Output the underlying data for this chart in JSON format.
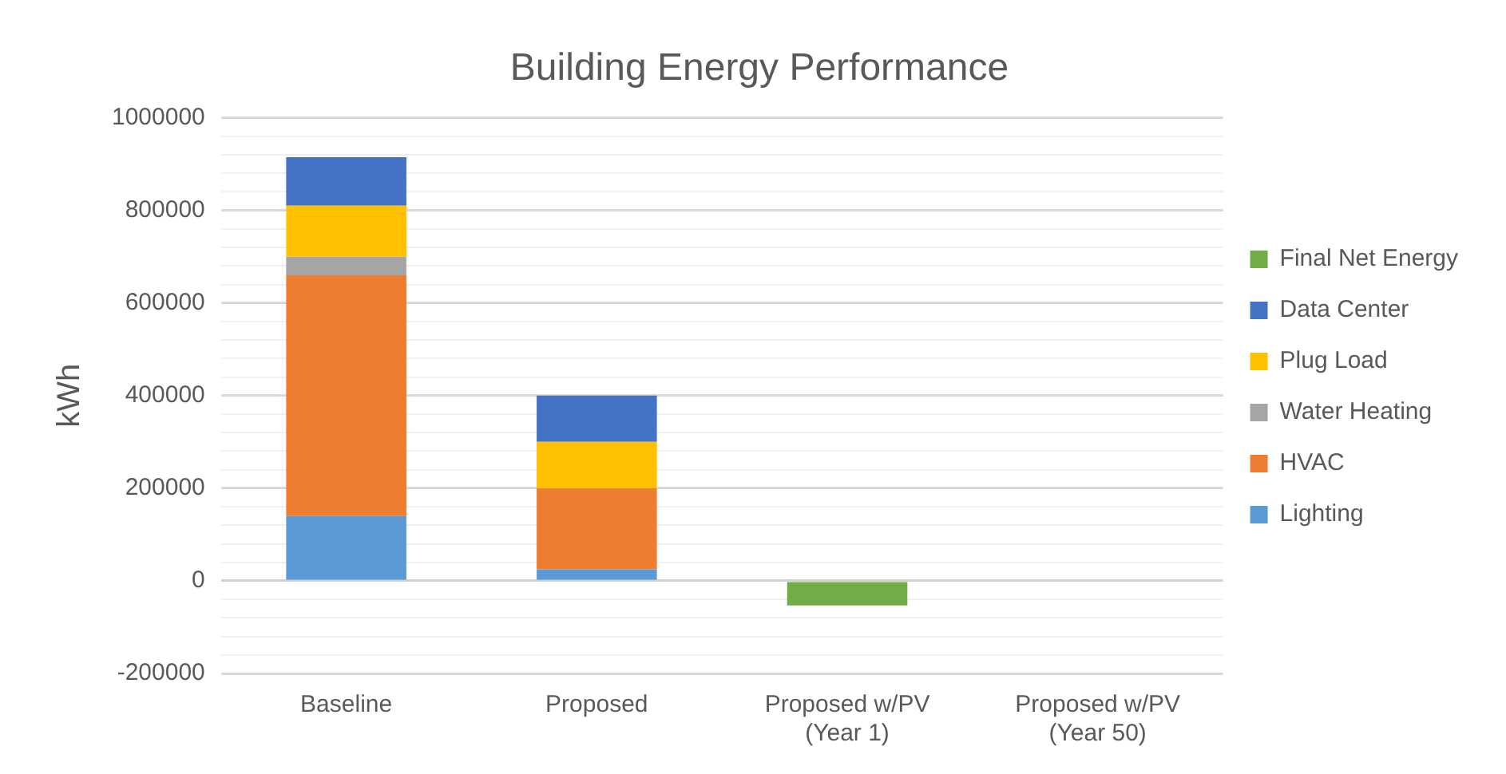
{
  "chart_data": {
    "type": "bar",
    "title": "Building Energy Performance",
    "ylabel": "kWh",
    "categories": [
      "Baseline",
      "Proposed",
      "Proposed w/PV\n(Year 1)",
      "Proposed w/PV\n(Year 50)"
    ],
    "stacked": true,
    "legend": "right",
    "grid": "y",
    "ylim": [
      -200000,
      1000000
    ],
    "yticks": [
      -200000,
      {
        "value": -160000,
        "label": null
      },
      {
        "value": -120000,
        "label": null
      },
      {
        "value": -80000,
        "label": null
      },
      {
        "value": -40000,
        "label": null
      },
      0,
      {
        "value": 40000,
        "label": null
      },
      {
        "value": 80000,
        "label": null
      },
      {
        "value": 120000,
        "label": null
      },
      {
        "value": 160000,
        "label": null
      },
      200000,
      {
        "value": 240000,
        "label": null
      },
      {
        "value": 280000,
        "label": null
      },
      {
        "value": 320000,
        "label": null
      },
      {
        "value": 360000,
        "label": null
      },
      400000,
      {
        "value": 440000,
        "label": null
      },
      {
        "value": 480000,
        "label": null
      },
      {
        "value": 520000,
        "label": null
      },
      {
        "value": 560000,
        "label": null
      },
      600000,
      {
        "value": 640000,
        "label": null
      },
      {
        "value": 680000,
        "label": null
      },
      {
        "value": 720000,
        "label": null
      },
      {
        "value": 760000,
        "label": null
      },
      800000,
      {
        "value": 840000,
        "label": null
      },
      {
        "value": 880000,
        "label": null
      },
      {
        "value": 920000,
        "label": null
      },
      {
        "value": 960000,
        "label": null
      },
      1000000
    ],
    "series": [
      {
        "name": "Lighting",
        "color": "#5b9bd5",
        "values": [
          140000,
          25000,
          null,
          null
        ]
      },
      {
        "name": "HVAC",
        "color": "#ed7d31",
        "values": [
          520000,
          175000,
          null,
          null
        ]
      },
      {
        "name": "Water Heating",
        "color": "#a5a5a5",
        "values": [
          40000,
          null,
          null,
          null
        ]
      },
      {
        "name": "Plug Load",
        "color": "#ffc000",
        "values": [
          110000,
          100000,
          null,
          null
        ]
      },
      {
        "name": "Data Center",
        "color": "#4472c4",
        "values": [
          105000,
          100000,
          null,
          null
        ]
      },
      {
        "name": "Final Net Energy",
        "color": "#70ad47",
        "values": [
          null,
          null,
          -53000,
          null
        ]
      }
    ]
  }
}
